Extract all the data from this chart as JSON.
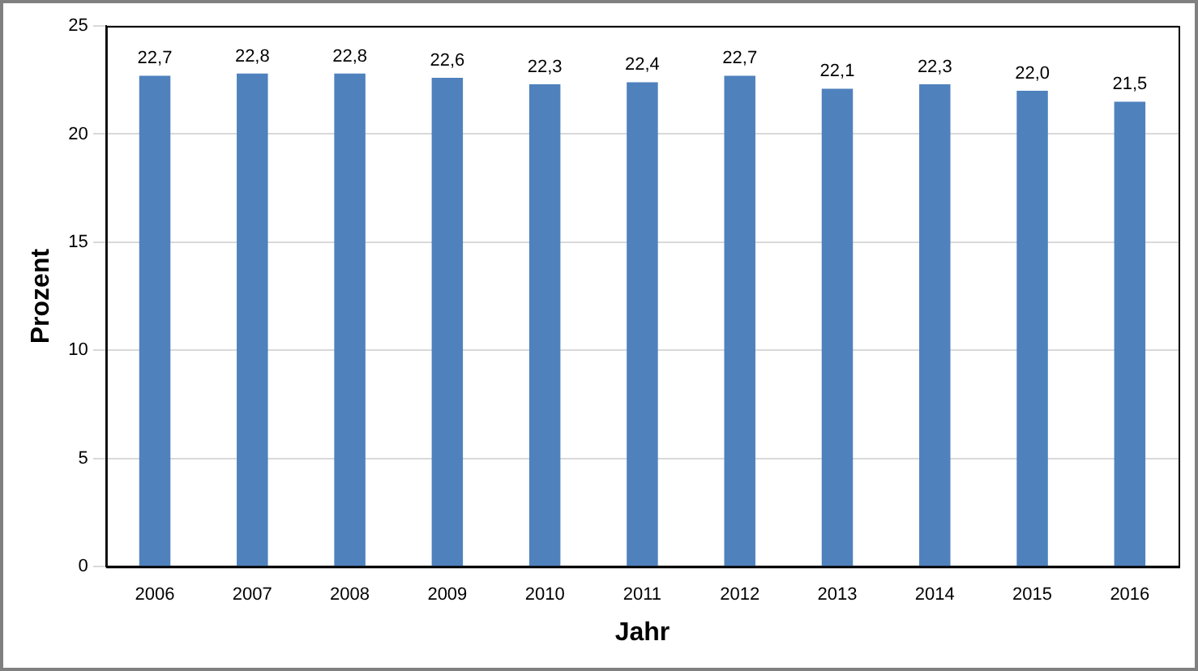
{
  "chart_data": {
    "type": "bar",
    "xlabel": "Jahr",
    "ylabel": "Prozent",
    "categories": [
      "2006",
      "2007",
      "2008",
      "2009",
      "2010",
      "2011",
      "2012",
      "2013",
      "2014",
      "2015",
      "2016"
    ],
    "values": [
      22.7,
      22.8,
      22.8,
      22.6,
      22.3,
      22.4,
      22.7,
      22.1,
      22.3,
      22.0,
      21.5
    ],
    "value_labels": [
      "22,7",
      "22,8",
      "22,8",
      "22,6",
      "22,3",
      "22,4",
      "22,7",
      "22,1",
      "22,3",
      "22,0",
      "21,5"
    ],
    "color": "#4f81bd",
    "ylim": [
      0,
      25
    ],
    "yticks": [
      0,
      5,
      10,
      15,
      20,
      25
    ],
    "grid": "y",
    "legend": false
  }
}
